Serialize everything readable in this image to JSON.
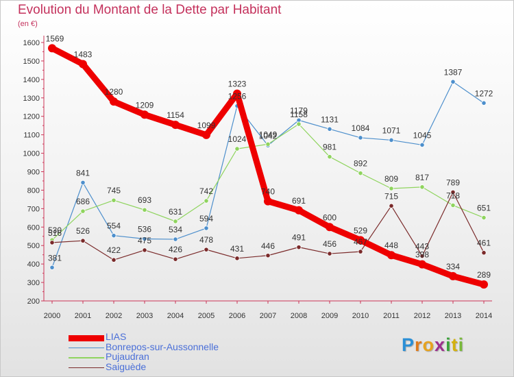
{
  "title": "Evolution du Montant de la Dette par Habitant",
  "subtitle": "(en €)",
  "chart_data": {
    "type": "line",
    "title": "Evolution du Montant de la Dette par Habitant",
    "subtitle": "(en €)",
    "x": [
      2000,
      2001,
      2002,
      2003,
      2004,
      2005,
      2006,
      2007,
      2008,
      2009,
      2010,
      2011,
      2012,
      2013,
      2014
    ],
    "ylim": [
      200,
      1600
    ],
    "yticks": [
      200,
      300,
      400,
      500,
      600,
      700,
      800,
      900,
      1000,
      1100,
      1200,
      1300,
      1400,
      1500,
      1600
    ],
    "grid": false,
    "legend_position": "bottom-left",
    "series": [
      {
        "name": "LIAS",
        "color": "#ee0000",
        "values": [
          1569,
          1483,
          1280,
          1209,
          1154,
          1099,
          1323,
          740,
          691,
          600,
          529,
          448,
          398,
          334,
          289
        ],
        "label_values": [
          "1569",
          "1483",
          "1280",
          "1209",
          "1154",
          "1099",
          "1323",
          "740",
          "691",
          "600",
          "529",
          "448",
          "398",
          "334",
          "289"
        ]
      },
      {
        "name": "Bonrepos-sur-Aussonnelle",
        "color": "#4d8fcc",
        "values": [
          381,
          841,
          554,
          536,
          534,
          594,
          1256,
          1042,
          1179,
          1131,
          1084,
          1071,
          1045,
          1387,
          1272
        ],
        "label_values": [
          "381",
          "841",
          "554",
          "536",
          "534",
          "594",
          "1256",
          "1042",
          "1179",
          "1131",
          "1084",
          "1071",
          "1045",
          "1387",
          "1272"
        ]
      },
      {
        "name": "Pujaudran",
        "color": "#8fd45e",
        "values": [
          530,
          686,
          745,
          693,
          631,
          742,
          1024,
          1049,
          1158,
          981,
          892,
          809,
          817,
          718,
          651
        ],
        "label_values": [
          "530",
          "686",
          "745",
          "693",
          "631",
          "742",
          "1024",
          "1049",
          "1158",
          "981",
          "892",
          "809",
          "817",
          "718",
          "651"
        ]
      },
      {
        "name": "Saiguède",
        "color": "#7a2a2a",
        "values": [
          516,
          526,
          422,
          475,
          426,
          478,
          431,
          446,
          491,
          456,
          467,
          715,
          443,
          789,
          461
        ],
        "label_values": [
          "516",
          "526",
          "422",
          "475",
          "426",
          "478",
          "431",
          "446",
          "491",
          "456",
          "467",
          "715",
          "443",
          "789",
          "461"
        ]
      }
    ]
  },
  "legend": [
    {
      "label": "LIAS",
      "color": "#ee0000"
    },
    {
      "label": "Bonrepos-sur-Aussonnelle",
      "color": "#4d8fcc"
    },
    {
      "label": "Pujaudran",
      "color": "#8fd45e"
    },
    {
      "label": "Saiguède",
      "color": "#7a2a2a"
    }
  ],
  "logo": {
    "letters": [
      "P",
      "r",
      "o",
      "x",
      "i",
      "t",
      "i"
    ],
    "colors": [
      "#2b8fd6",
      "#e07a1a",
      "#e7a31f",
      "#9c2f8d",
      "#3aa23a",
      "#d4b10f",
      "#79b93a"
    ]
  }
}
